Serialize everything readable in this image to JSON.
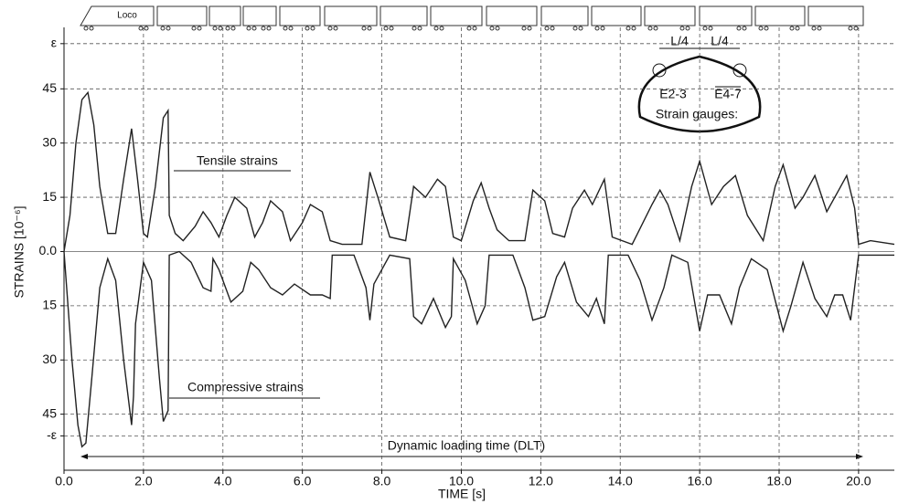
{
  "chart_data": {
    "type": "line",
    "x_label": "TIME [s]",
    "y_label": "STRAINS [10⁻⁶]",
    "xlim": [
      0,
      20.9
    ],
    "ylim": [
      -60.5,
      62
    ],
    "xticks": [
      {
        "value": 0,
        "label": "0.0"
      },
      {
        "value": 2,
        "label": "2.0"
      },
      {
        "value": 4,
        "label": "4.0"
      },
      {
        "value": 6,
        "label": "6.0"
      },
      {
        "value": 8,
        "label": "8.0"
      },
      {
        "value": 10,
        "label": "10.0"
      },
      {
        "value": 12,
        "label": "12.0"
      },
      {
        "value": 14,
        "label": "14.0"
      },
      {
        "value": 16,
        "label": "16.0"
      },
      {
        "value": 18,
        "label": "18.0"
      },
      {
        "value": 20,
        "label": "20.0"
      }
    ],
    "yticks": [
      {
        "value": -51,
        "label": "-ε"
      },
      {
        "value": -45,
        "label": "45"
      },
      {
        "value": -30,
        "label": "30"
      },
      {
        "value": -15,
        "label": "15"
      },
      {
        "value": 0,
        "label": "0.0"
      },
      15,
      30,
      45,
      {
        "value": 57.5,
        "label": "ε"
      }
    ],
    "grid": true,
    "series": [
      {
        "name": "Tensile strains",
        "color": "#222222",
        "x": [
          0.0,
          0.15,
          0.3,
          0.45,
          0.6,
          0.75,
          0.9,
          1.1,
          1.3,
          1.5,
          1.7,
          1.85,
          2.0,
          2.1,
          2.3,
          2.5,
          2.62,
          2.65,
          2.8,
          3.0,
          3.3,
          3.5,
          3.7,
          3.9,
          4.1,
          4.3,
          4.6,
          4.8,
          5.0,
          5.2,
          5.5,
          5.7,
          6.0,
          6.2,
          6.5,
          6.7,
          7.0,
          7.5,
          7.7,
          7.9,
          8.2,
          8.6,
          8.8,
          9.1,
          9.4,
          9.6,
          9.8,
          10.0,
          10.3,
          10.5,
          10.7,
          10.9,
          11.2,
          11.6,
          11.8,
          12.1,
          12.3,
          12.6,
          12.8,
          13.1,
          13.3,
          13.6,
          13.8,
          14.3,
          14.8,
          15.0,
          15.2,
          15.5,
          15.8,
          16.0,
          16.3,
          16.6,
          16.9,
          17.2,
          17.6,
          17.9,
          18.1,
          18.4,
          18.6,
          18.9,
          19.2,
          19.5,
          19.7,
          19.9,
          20.0,
          20.3,
          20.9
        ],
        "values": [
          0,
          10,
          30,
          42,
          44,
          35,
          18,
          5,
          5,
          20,
          34,
          20,
          5,
          4,
          18,
          37,
          39,
          10,
          5,
          3,
          7,
          11,
          8,
          4,
          10,
          15,
          12,
          4,
          8,
          14,
          11,
          3,
          8,
          13,
          11,
          3,
          2,
          2,
          22,
          15,
          4,
          3,
          18,
          15,
          20,
          18,
          4,
          3,
          14,
          19,
          12,
          6,
          3,
          3,
          17,
          14,
          5,
          4,
          12,
          17,
          13,
          20,
          4,
          2,
          13,
          17,
          13,
          3,
          18,
          25,
          13,
          18,
          21,
          10,
          3,
          18,
          24,
          12,
          15,
          21,
          11,
          17,
          21,
          12,
          2,
          3,
          2
        ]
      },
      {
        "name": "Compressive strains",
        "color": "#222222",
        "x": [
          0.0,
          0.2,
          0.35,
          0.45,
          0.55,
          0.7,
          0.9,
          1.1,
          1.3,
          1.5,
          1.7,
          1.75,
          1.8,
          2.0,
          2.2,
          2.4,
          2.5,
          2.62,
          2.65,
          2.9,
          3.2,
          3.5,
          3.7,
          3.75,
          3.9,
          4.2,
          4.5,
          4.7,
          4.9,
          5.2,
          5.5,
          5.8,
          6.2,
          6.5,
          6.7,
          6.75,
          7.3,
          7.6,
          7.7,
          7.8,
          8.2,
          8.7,
          8.8,
          9.0,
          9.3,
          9.6,
          9.75,
          9.8,
          10.1,
          10.4,
          10.6,
          10.7,
          11.3,
          11.6,
          11.8,
          12.1,
          12.4,
          12.6,
          12.9,
          13.2,
          13.4,
          13.6,
          13.7,
          14.2,
          14.5,
          14.8,
          15.1,
          15.3,
          15.7,
          16.0,
          16.2,
          16.5,
          16.8,
          17.0,
          17.3,
          17.7,
          18.1,
          18.3,
          18.6,
          18.9,
          19.2,
          19.4,
          19.6,
          19.8,
          20.0,
          20.9
        ],
        "values": [
          0,
          -30,
          -48,
          -54,
          -53,
          -35,
          -10,
          -2,
          -8,
          -30,
          -48,
          -40,
          -20,
          -3,
          -8,
          -35,
          -47,
          -44,
          -1,
          0,
          -3,
          -10,
          -11,
          -2,
          -5,
          -14,
          -11,
          -3,
          -5,
          -10,
          -12,
          -9,
          -12,
          -12,
          -13,
          -1,
          -1,
          -10,
          -19,
          -9,
          -1,
          -2,
          -18,
          -20,
          -13,
          -21,
          -18,
          -2,
          -8,
          -20,
          -15,
          -1,
          -1,
          -10,
          -19,
          -18,
          -7,
          -3,
          -14,
          -18,
          -13,
          -20,
          -1,
          -1,
          -8,
          -19,
          -10,
          -1,
          -3,
          -22,
          -12,
          -12,
          -20,
          -10,
          -2,
          -5,
          -22,
          -15,
          -3,
          -13,
          -18,
          -12,
          -12,
          -19,
          -1,
          -1
        ]
      }
    ],
    "annotations": {
      "loading_time": "Dynamic loading time (DLT)",
      "locomotive": "Loco"
    },
    "inset": {
      "spans": [
        "L/4",
        "L/4"
      ],
      "gauges": [
        "E2-3",
        "E4-7"
      ],
      "title": "Strain gauges:"
    }
  }
}
